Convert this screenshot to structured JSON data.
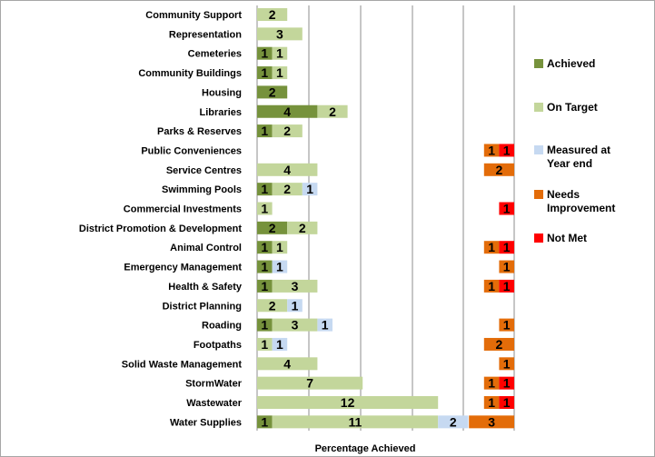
{
  "chart_data": {
    "type": "bar",
    "orientation": "horizontal",
    "stacked": true,
    "xlabel": "Percentage Achieved",
    "ylabel": "",
    "grid": true,
    "legend_position": "right",
    "categories": [
      "Community Support",
      "Representation",
      "Cemeteries",
      "Community Buildings",
      "Housing",
      "Libraries",
      "Parks & Reserves",
      "Public Conveniences",
      "Service Centres",
      "Swimming Pools",
      "Commercial Investments",
      "District Promotion & Development",
      "Animal Control",
      "Emergency Management",
      "Health & Safety",
      "District Planning",
      "Roading",
      "Footpaths",
      "Solid Waste Management",
      "StormWater",
      "Wastewater",
      "Water Supplies"
    ],
    "series": [
      {
        "name": "Achieved",
        "color": "#76923c",
        "values": [
          0,
          0,
          1,
          1,
          2,
          4,
          1,
          0,
          0,
          1,
          0,
          2,
          1,
          1,
          1,
          0,
          1,
          0,
          0,
          0,
          0,
          1
        ]
      },
      {
        "name": "On Target",
        "color": "#c3d69b",
        "values": [
          2,
          3,
          1,
          1,
          0,
          2,
          2,
          0,
          4,
          2,
          1,
          2,
          1,
          0,
          3,
          2,
          3,
          1,
          4,
          7,
          12,
          11
        ]
      },
      {
        "name": "Measured at Year end",
        "color": "#c6d9f1",
        "values": [
          0,
          0,
          0,
          0,
          0,
          0,
          0,
          0,
          0,
          1,
          0,
          0,
          0,
          1,
          0,
          1,
          1,
          1,
          0,
          0,
          0,
          2
        ]
      },
      {
        "name": "Needs Improvement",
        "color": "#e36c09",
        "values": [
          0,
          0,
          0,
          0,
          0,
          0,
          0,
          1,
          2,
          0,
          0,
          0,
          1,
          1,
          1,
          0,
          1,
          2,
          1,
          1,
          1,
          3
        ]
      },
      {
        "name": "Not Met",
        "color": "#ff0000",
        "values": [
          0,
          0,
          0,
          0,
          0,
          0,
          0,
          1,
          0,
          0,
          1,
          0,
          1,
          0,
          1,
          0,
          0,
          0,
          0,
          1,
          1,
          0
        ]
      }
    ]
  }
}
